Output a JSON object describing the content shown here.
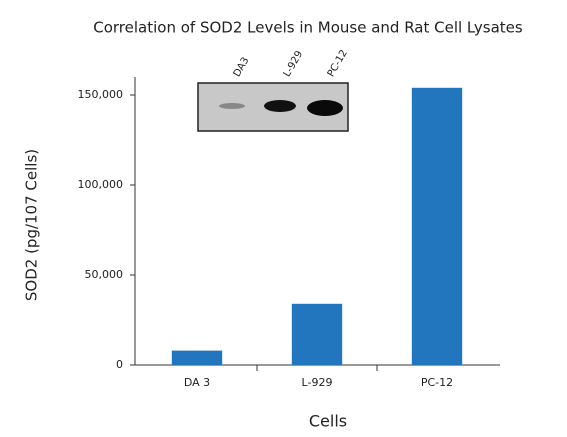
{
  "chart_data": {
    "type": "bar",
    "title": "Correlation of SOD2 Levels in Mouse and Rat Cell Lysates",
    "x_label": "Cells",
    "y_label": "SOD2 (pg/107 Cells)",
    "categories": [
      "DA 3",
      "L-929",
      "PC-12"
    ],
    "values": [
      8000,
      34000,
      154000
    ],
    "color": "#2176bd",
    "ylim": [
      0,
      160000
    ],
    "yticks": [
      0,
      {
        "value": 50000,
        "label": "50,000"
      },
      {
        "value": 100000,
        "label": "100,000"
      },
      {
        "value": 150000,
        "label": "150,000"
      }
    ],
    "grid": false,
    "inset_labels": [
      "DA3",
      "L-929",
      "PC-12"
    ]
  }
}
